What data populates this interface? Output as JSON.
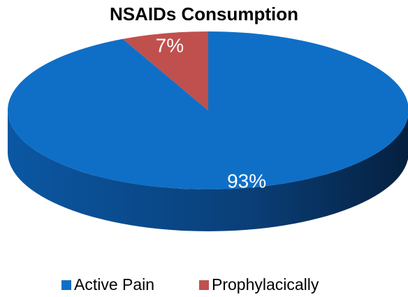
{
  "chart_data": {
    "type": "pie",
    "title": "NSAIDs Consumption",
    "categories": [
      "Active Pain",
      "Prophylacically"
    ],
    "values": [
      93,
      7
    ],
    "value_labels": [
      "93%",
      "7%"
    ],
    "colors": [
      "#0f6fc6",
      "#c0504d"
    ],
    "legend": "bottom"
  }
}
